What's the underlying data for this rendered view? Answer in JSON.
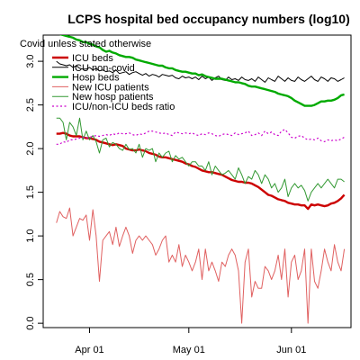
{
  "chart_data": {
    "type": "line",
    "title": "LCPS hospital bed occupancy numbers (log10)",
    "subtitle": "Covid unless stated otherwise",
    "xlabel": "",
    "ylabel": "",
    "x_start": "2021-03-22",
    "x_end": "2021-06-15",
    "xlim": [
      "2021-03-18",
      "2021-06-19"
    ],
    "ylim": [
      -0.05,
      3.3
    ],
    "x_ticks": [
      {
        "date": "2021-04-01",
        "label": "Apr 01"
      },
      {
        "date": "2021-05-01",
        "label": "May 01"
      },
      {
        "date": "2021-06-01",
        "label": "Jun 01"
      }
    ],
    "y_ticks": [
      {
        "value": 0.0,
        "label": "0.0"
      },
      {
        "value": 0.5,
        "label": "0.5"
      },
      {
        "value": 1.0,
        "label": "1.0"
      },
      {
        "value": 1.5,
        "label": "1.5"
      },
      {
        "value": 2.0,
        "label": "2.0"
      },
      {
        "value": 2.5,
        "label": "2.5"
      },
      {
        "value": 3.0,
        "label": "3.0"
      }
    ],
    "grid": false,
    "legend_position": "top-left",
    "series": [
      {
        "name": "ICU beds",
        "color": "#cc0000",
        "width": 2.4,
        "dash": "",
        "values": [
          2.17,
          2.17,
          2.18,
          2.17,
          2.15,
          2.14,
          2.14,
          2.14,
          2.13,
          2.12,
          2.12,
          2.11,
          2.1,
          2.08,
          2.07,
          2.06,
          2.05,
          2.04,
          2.05,
          2.04,
          2.03,
          2.0,
          1.99,
          1.98,
          1.98,
          1.99,
          1.98,
          1.97,
          1.95,
          1.94,
          1.93,
          1.91,
          1.9,
          1.9,
          1.89,
          1.88,
          1.87,
          1.86,
          1.85,
          1.83,
          1.82,
          1.8,
          1.79,
          1.77,
          1.75,
          1.74,
          1.73,
          1.73,
          1.72,
          1.71,
          1.7,
          1.68,
          1.66,
          1.64,
          1.63,
          1.62,
          1.62,
          1.61,
          1.61,
          1.6,
          1.58,
          1.56,
          1.53,
          1.5,
          1.47,
          1.46,
          1.44,
          1.42,
          1.41,
          1.4,
          1.38,
          1.37,
          1.36,
          1.36,
          1.35,
          1.35,
          1.31,
          1.36,
          1.35,
          1.36,
          1.35,
          1.34,
          1.35,
          1.37,
          1.38,
          1.4,
          1.43,
          1.47
        ]
      },
      {
        "name": "ICU non-covid",
        "color": "#000000",
        "width": 1,
        "dash": "",
        "values": [
          3.0,
          2.97,
          2.96,
          2.95,
          2.96,
          2.93,
          2.95,
          2.92,
          2.91,
          2.91,
          2.93,
          2.9,
          2.92,
          2.89,
          2.9,
          2.88,
          2.89,
          2.87,
          2.9,
          2.86,
          2.87,
          2.88,
          2.85,
          2.87,
          2.88,
          2.86,
          2.84,
          2.86,
          2.83,
          2.85,
          2.84,
          2.82,
          2.85,
          2.84,
          2.83,
          2.84,
          2.81,
          2.8,
          2.83,
          2.81,
          2.82,
          2.8,
          2.82,
          2.79,
          2.83,
          2.8,
          2.82,
          2.78,
          2.81,
          2.83,
          2.79,
          2.78,
          2.82,
          2.79,
          2.8,
          2.78,
          2.82,
          2.79,
          2.78,
          2.8,
          2.77,
          2.82,
          2.79,
          2.76,
          2.81,
          2.79,
          2.77,
          2.83,
          2.8,
          2.77,
          2.81,
          2.78,
          2.77,
          2.82,
          2.79,
          2.77,
          2.8,
          2.83,
          2.79,
          2.77,
          2.82,
          2.8,
          2.77,
          2.81,
          2.8,
          2.77,
          2.79,
          2.81
        ]
      },
      {
        "name": "Hosp beds",
        "color": "#00aa00",
        "width": 2.4,
        "dash": "",
        "values": [
          3.33,
          3.31,
          3.3,
          3.29,
          3.28,
          3.27,
          3.25,
          3.24,
          3.22,
          3.22,
          3.2,
          3.19,
          3.17,
          3.16,
          3.13,
          3.11,
          3.12,
          3.1,
          3.09,
          3.07,
          3.06,
          3.05,
          3.05,
          3.04,
          3.02,
          3.01,
          3.0,
          2.99,
          2.98,
          2.97,
          2.96,
          2.95,
          2.95,
          2.93,
          2.92,
          2.92,
          2.9,
          2.89,
          2.88,
          2.88,
          2.87,
          2.86,
          2.86,
          2.84,
          2.85,
          2.83,
          2.82,
          2.81,
          2.8,
          2.8,
          2.8,
          2.79,
          2.78,
          2.77,
          2.76,
          2.76,
          2.75,
          2.74,
          2.72,
          2.71,
          2.71,
          2.7,
          2.69,
          2.68,
          2.67,
          2.66,
          2.65,
          2.63,
          2.62,
          2.61,
          2.6,
          2.58,
          2.55,
          2.53,
          2.51,
          2.49,
          2.49,
          2.49,
          2.5,
          2.52,
          2.54,
          2.54,
          2.55,
          2.55,
          2.56,
          2.58,
          2.61,
          2.62
        ]
      },
      {
        "name": "New ICU patients",
        "color": "#e06060",
        "width": 1,
        "dash": "",
        "values": [
          1.15,
          1.28,
          1.22,
          1.2,
          1.32,
          1.0,
          1.1,
          1.2,
          1.18,
          1.24,
          0.95,
          1.3,
          1.0,
          0.48,
          0.95,
          1.0,
          1.05,
          0.9,
          1.1,
          0.88,
          1.0,
          1.1,
          1.0,
          0.8,
          0.95,
          1.0,
          0.95,
          1.0,
          0.95,
          0.9,
          0.78,
          0.85,
          0.95,
          1.0,
          0.7,
          0.78,
          0.7,
          0.9,
          0.65,
          0.78,
          0.7,
          0.6,
          0.7,
          0.85,
          0.5,
          0.85,
          0.6,
          0.7,
          0.6,
          0.48,
          0.7,
          0.65,
          0.78,
          0.85,
          0.78,
          0.6,
          0.0,
          0.7,
          0.85,
          0.3,
          0.48,
          0.4,
          0.4,
          0.65,
          0.6,
          0.5,
          0.6,
          0.78,
          0.5,
          0.85,
          0.3,
          0.7,
          0.78,
          0.5,
          0.6,
          0.85,
          0.0,
          0.85,
          0.48,
          0.4,
          0.6,
          0.85,
          0.7,
          0.6,
          0.9,
          0.7,
          0.6,
          0.85
        ]
      },
      {
        "name": "New hosp patients",
        "color": "#339933",
        "width": 1,
        "dash": "",
        "values": [
          2.35,
          2.35,
          2.3,
          2.1,
          2.3,
          2.25,
          2.15,
          2.35,
          2.1,
          2.2,
          2.1,
          2.15,
          2.08,
          1.95,
          2.1,
          2.12,
          2.02,
          2.07,
          2.05,
          2.0,
          1.98,
          2.05,
          1.99,
          2.0,
          1.95,
          2.05,
          1.9,
          2.0,
          1.98,
          2.0,
          1.85,
          1.95,
          1.9,
          1.95,
          1.97,
          1.85,
          1.92,
          1.88,
          1.9,
          1.85,
          1.8,
          1.85,
          1.85,
          1.8,
          1.8,
          1.75,
          1.85,
          1.7,
          1.8,
          1.75,
          1.7,
          1.72,
          1.75,
          1.7,
          1.65,
          1.78,
          1.7,
          1.6,
          1.68,
          1.65,
          1.75,
          1.7,
          1.6,
          1.7,
          1.65,
          1.55,
          1.6,
          1.5,
          1.55,
          1.65,
          1.45,
          1.55,
          1.6,
          1.55,
          1.58,
          1.52,
          1.4,
          1.5,
          1.55,
          1.6,
          1.55,
          1.6,
          1.65,
          1.6,
          1.55,
          1.65,
          1.65,
          1.62
        ]
      },
      {
        "name": "ICU/non-ICU beds ratio",
        "color": "#cc00cc",
        "width": 1.2,
        "dash": "2,2.5",
        "values": [
          2.05,
          2.05,
          2.08,
          2.07,
          2.1,
          2.1,
          2.11,
          2.12,
          2.13,
          2.12,
          2.13,
          2.14,
          2.15,
          2.14,
          2.15,
          2.16,
          2.15,
          2.17,
          2.16,
          2.18,
          2.17,
          2.17,
          2.18,
          2.16,
          2.15,
          2.17,
          2.16,
          2.18,
          2.2,
          2.2,
          2.19,
          2.18,
          2.17,
          2.18,
          2.16,
          2.15,
          2.19,
          2.18,
          2.17,
          2.18,
          2.17,
          2.18,
          2.16,
          2.15,
          2.17,
          2.16,
          2.18,
          2.17,
          2.15,
          2.14,
          2.16,
          2.17,
          2.16,
          2.15,
          2.18,
          2.16,
          2.17,
          2.18,
          2.2,
          2.15,
          2.16,
          2.18,
          2.15,
          2.2,
          2.17,
          2.19,
          2.16,
          2.15,
          2.2,
          2.22,
          2.18,
          2.13,
          2.12,
          2.14,
          2.15,
          2.12,
          2.1,
          2.11,
          2.1,
          2.12,
          2.09,
          2.08,
          2.1,
          2.09,
          2.1,
          2.09,
          2.11,
          2.13
        ]
      }
    ]
  }
}
